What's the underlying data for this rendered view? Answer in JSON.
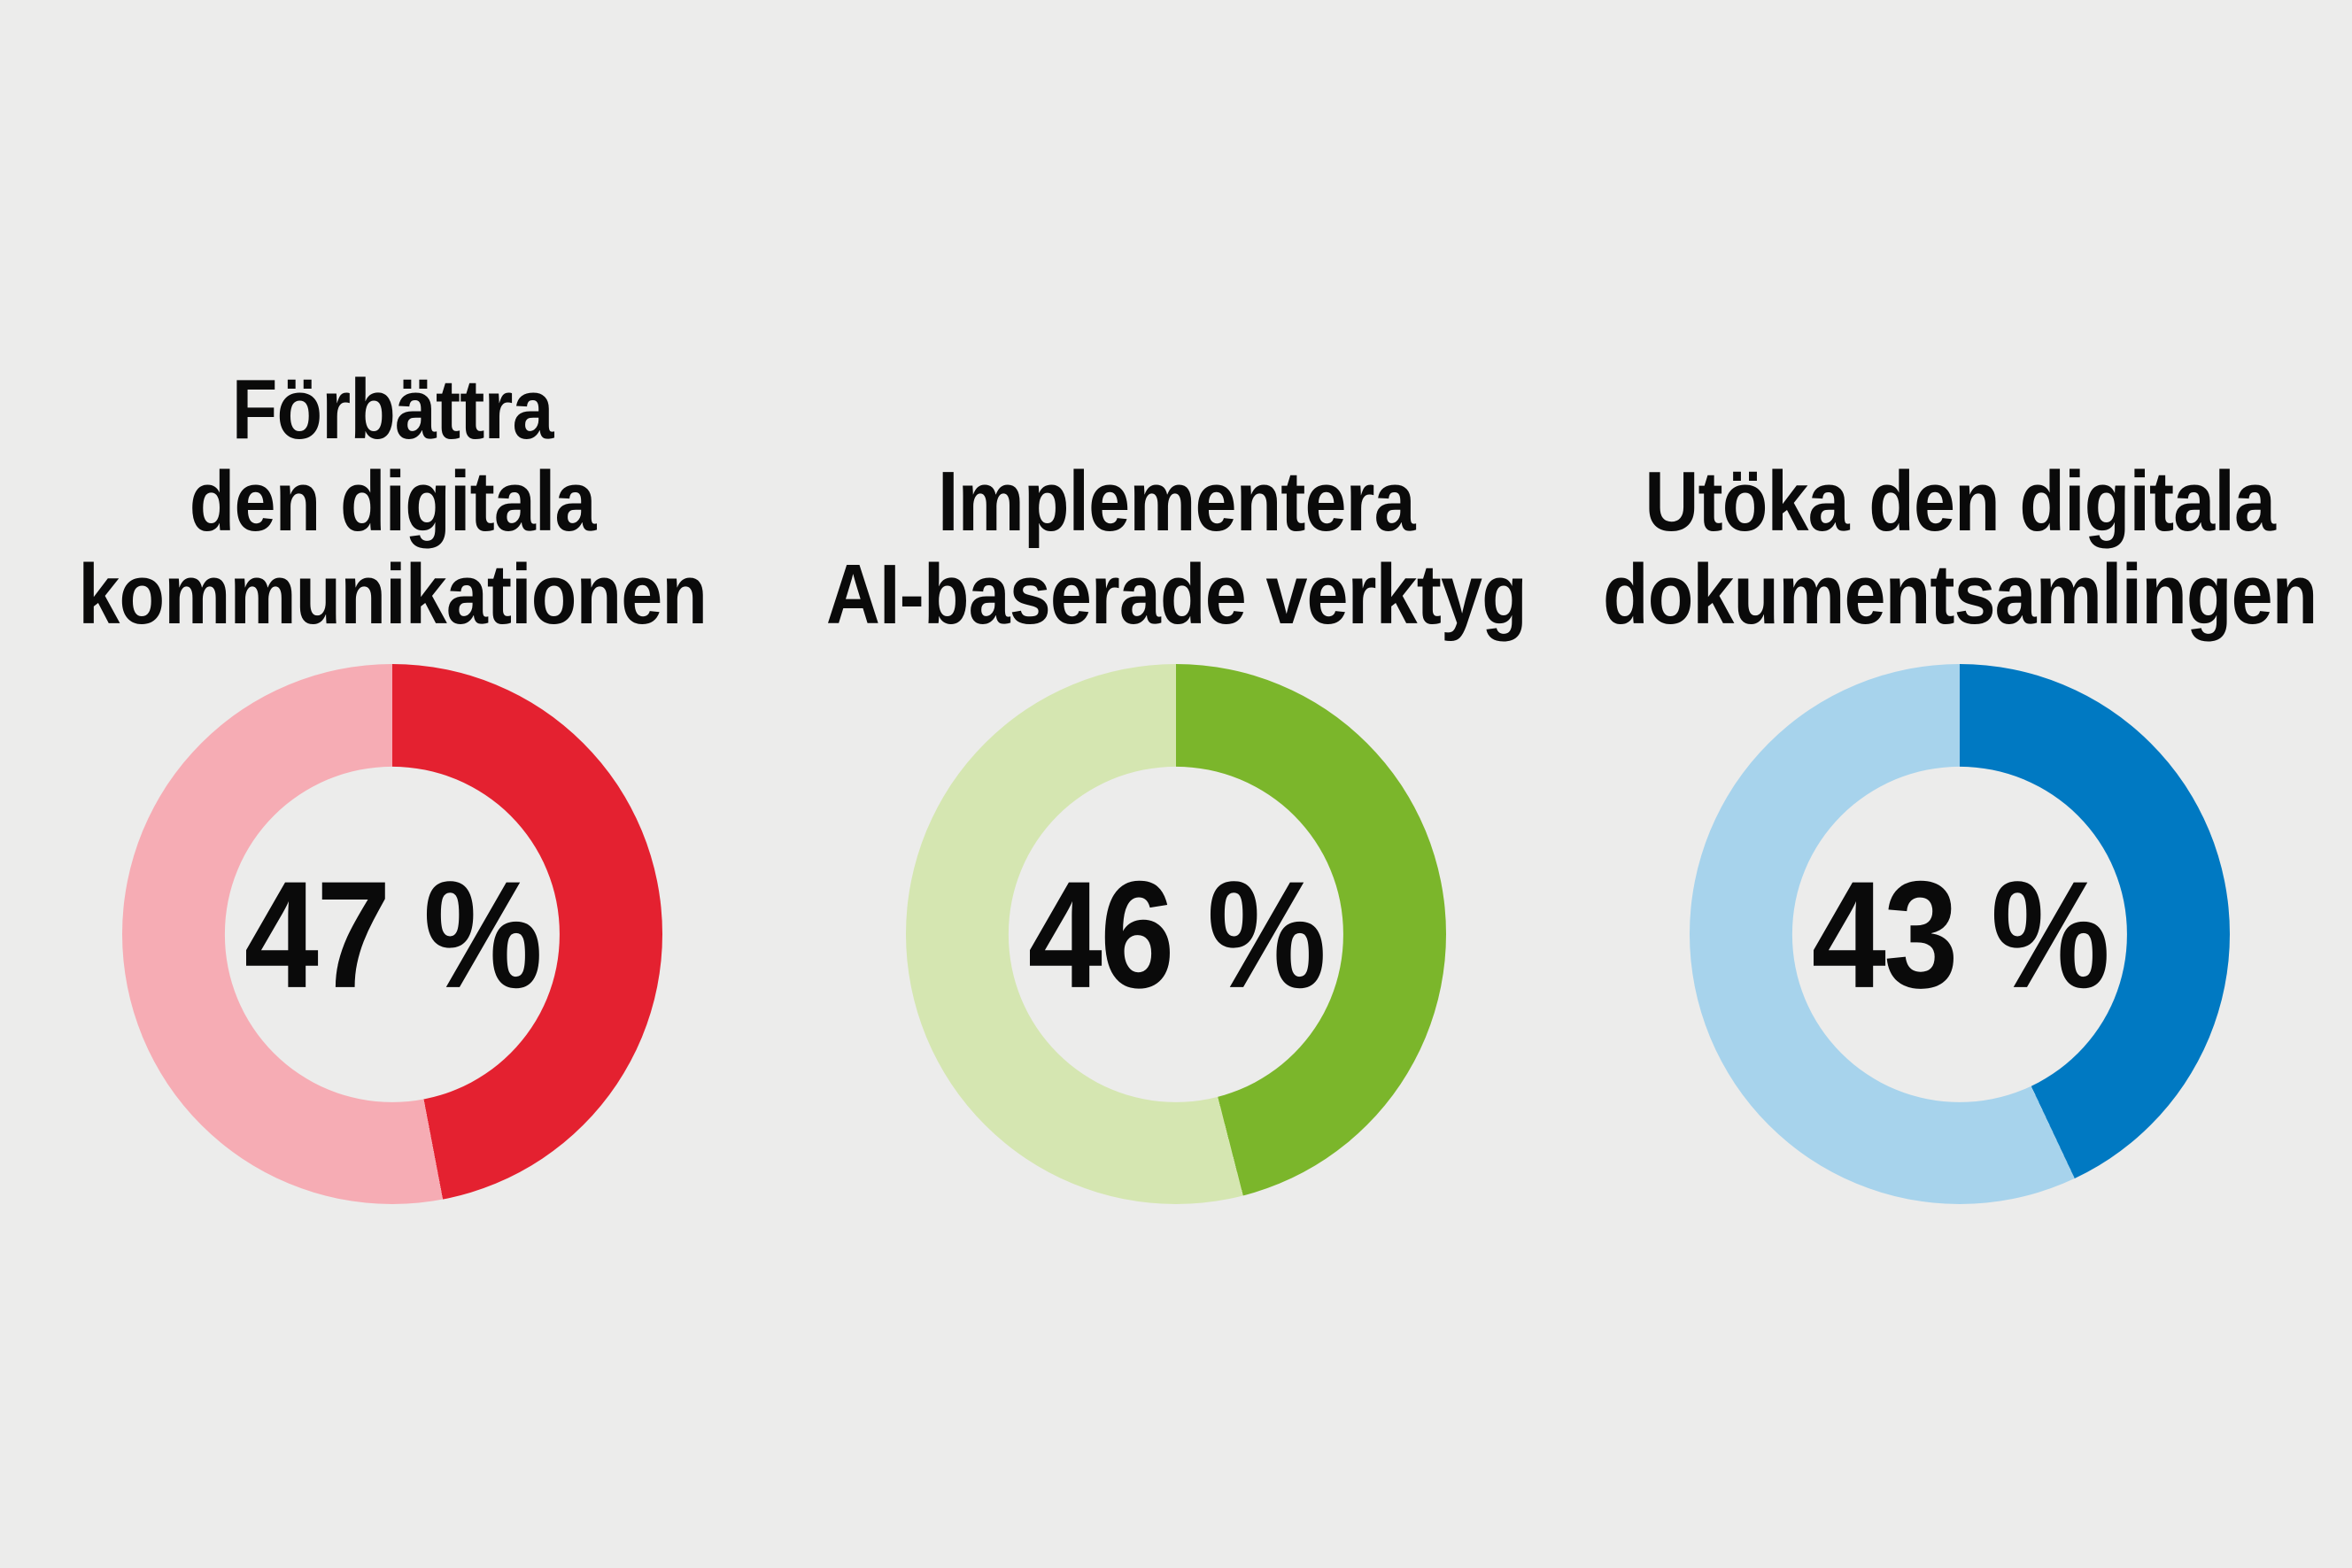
{
  "background_color": "#ececeb",
  "text_color": "#0a0a0a",
  "chart_data": [
    {
      "type": "pie",
      "subtype": "donut",
      "title": "Förbättra den digitala kommunikationen",
      "title_lines": [
        "Förbättra",
        "den digitala",
        "kommunikationen"
      ],
      "value_percent": 47,
      "remainder_percent": 53,
      "value_label": "47 %",
      "colors": {
        "value": "#e42130",
        "remainder": "#f6acb4"
      },
      "start_angle_deg": 0,
      "direction": "clockwise",
      "hole_ratio": 0.62
    },
    {
      "type": "pie",
      "subtype": "donut",
      "title": "Implementera AI-baserade verktyg",
      "title_lines": [
        "Implementera",
        "AI-baserade verktyg"
      ],
      "value_percent": 46,
      "remainder_percent": 54,
      "value_label": "46 %",
      "colors": {
        "value": "#7bb62b",
        "remainder": "#d5e6b1"
      },
      "start_angle_deg": 0,
      "direction": "clockwise",
      "hole_ratio": 0.62
    },
    {
      "type": "pie",
      "subtype": "donut",
      "title": "Utöka den digitala dokumentsamlingen",
      "title_lines": [
        "Utöka den digitala",
        "dokumentsamlingen"
      ],
      "value_percent": 43,
      "remainder_percent": 57,
      "value_label": "43 %",
      "colors": {
        "value": "#0079c2",
        "remainder": "#a7d3ec"
      },
      "start_angle_deg": 0,
      "direction": "clockwise",
      "hole_ratio": 0.62
    }
  ]
}
